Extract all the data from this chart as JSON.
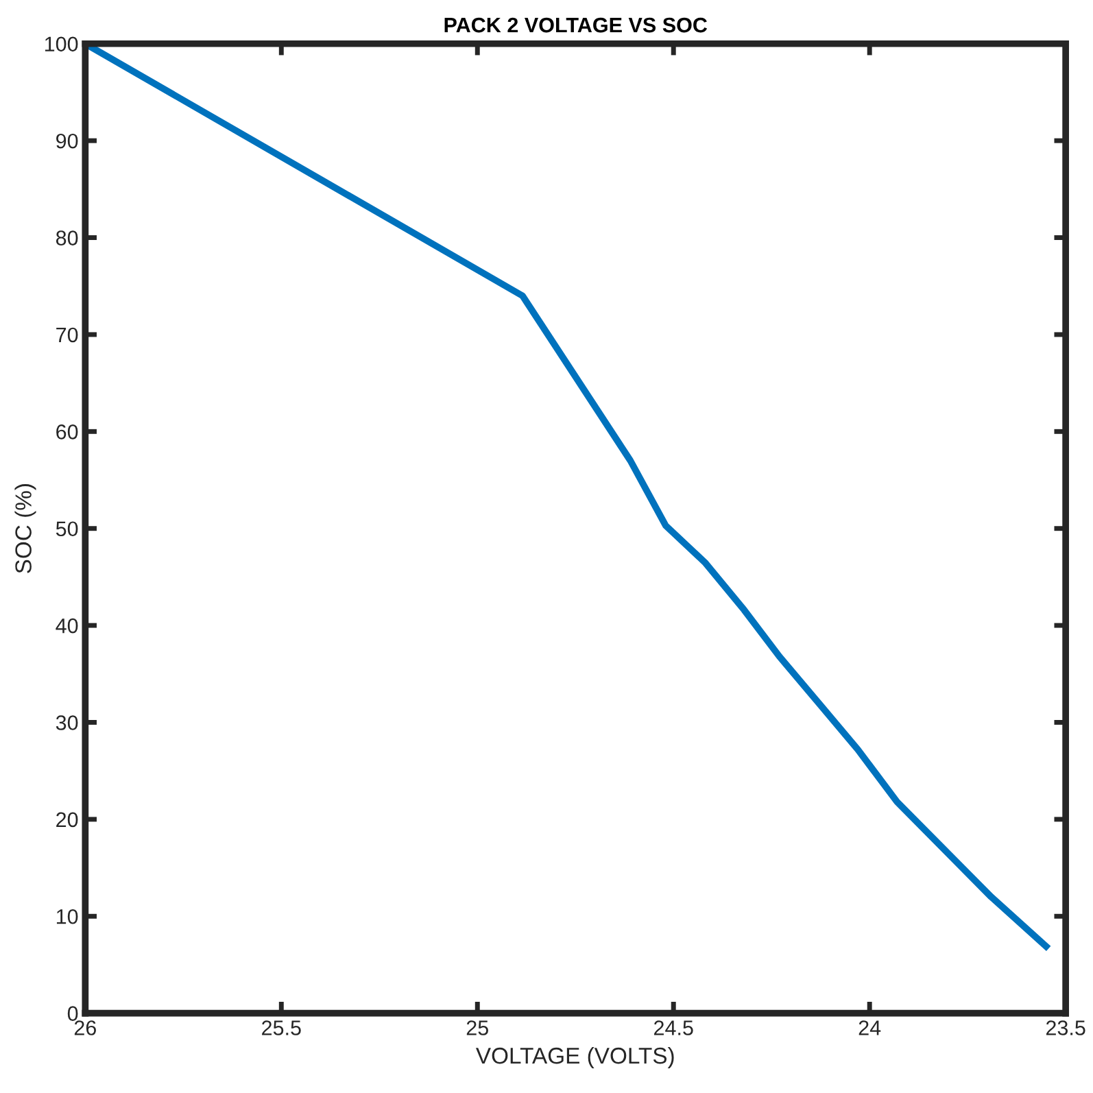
{
  "chart_data": {
    "type": "line",
    "title": "PACK 2 VOLTAGE VS SOC",
    "xlabel": "VOLTAGE (VOLTS)",
    "ylabel": "SOC (%)",
    "x": [
      26,
      24.885,
      24.61,
      24.52,
      24.42,
      24.32,
      24.23,
      24.13,
      24.03,
      23.93,
      23.69,
      23.55
    ],
    "series": [
      {
        "color": "#0072bd",
        "values": [
          100,
          74,
          57,
          50.3,
          46.5,
          41.6,
          36.8,
          32,
          27.2,
          21.8,
          12,
          6.9
        ]
      }
    ],
    "xlim": [
      26,
      23.5
    ],
    "xticks": [
      26,
      25.5,
      25,
      24.5,
      24,
      23.5
    ],
    "ylim": [
      0,
      100
    ],
    "yticks": [
      0,
      10,
      20,
      30,
      40,
      50,
      60,
      70,
      80,
      90,
      100
    ],
    "grid": false,
    "legend": false
  }
}
